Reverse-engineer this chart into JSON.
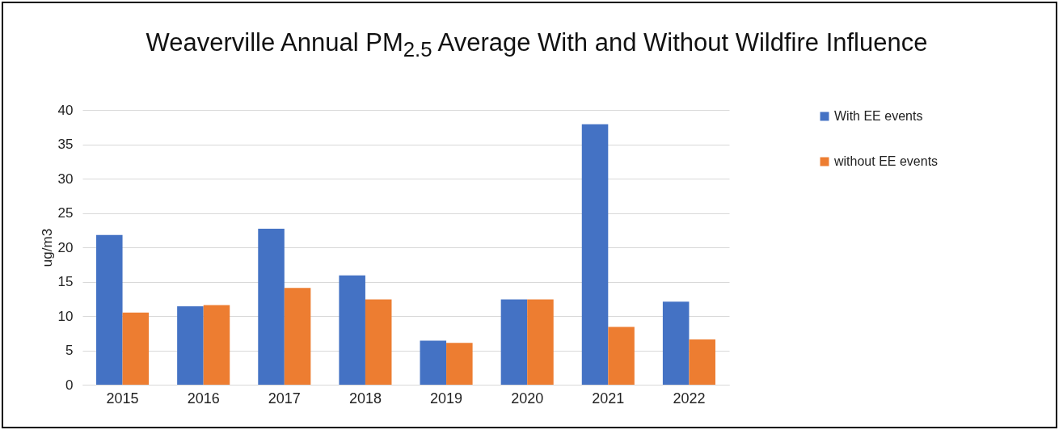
{
  "chart_data": {
    "type": "bar",
    "title": "Weaverville Annual PM$_{2.5}$ Average With and Without Wildfire Influence",
    "ylabel": "ug/m3",
    "categories": [
      "2015",
      "2016",
      "2017",
      "2018",
      "2019",
      "2020",
      "2021",
      "2022"
    ],
    "series": [
      {
        "name": "With EE events",
        "color": "#4472c4",
        "values": [
          21.8,
          11.4,
          22.7,
          15.9,
          6.4,
          12.4,
          37.9,
          12.1
        ]
      },
      {
        "name": "without EE events",
        "color": "#ed7d31",
        "values": [
          10.5,
          11.6,
          14.1,
          12.4,
          6.1,
          12.4,
          8.4,
          6.6
        ]
      }
    ],
    "ylim": [
      0,
      40
    ],
    "yticks": [
      0,
      5,
      10,
      15,
      20,
      25,
      30,
      35,
      40
    ],
    "grid": "y",
    "legend": "right"
  }
}
